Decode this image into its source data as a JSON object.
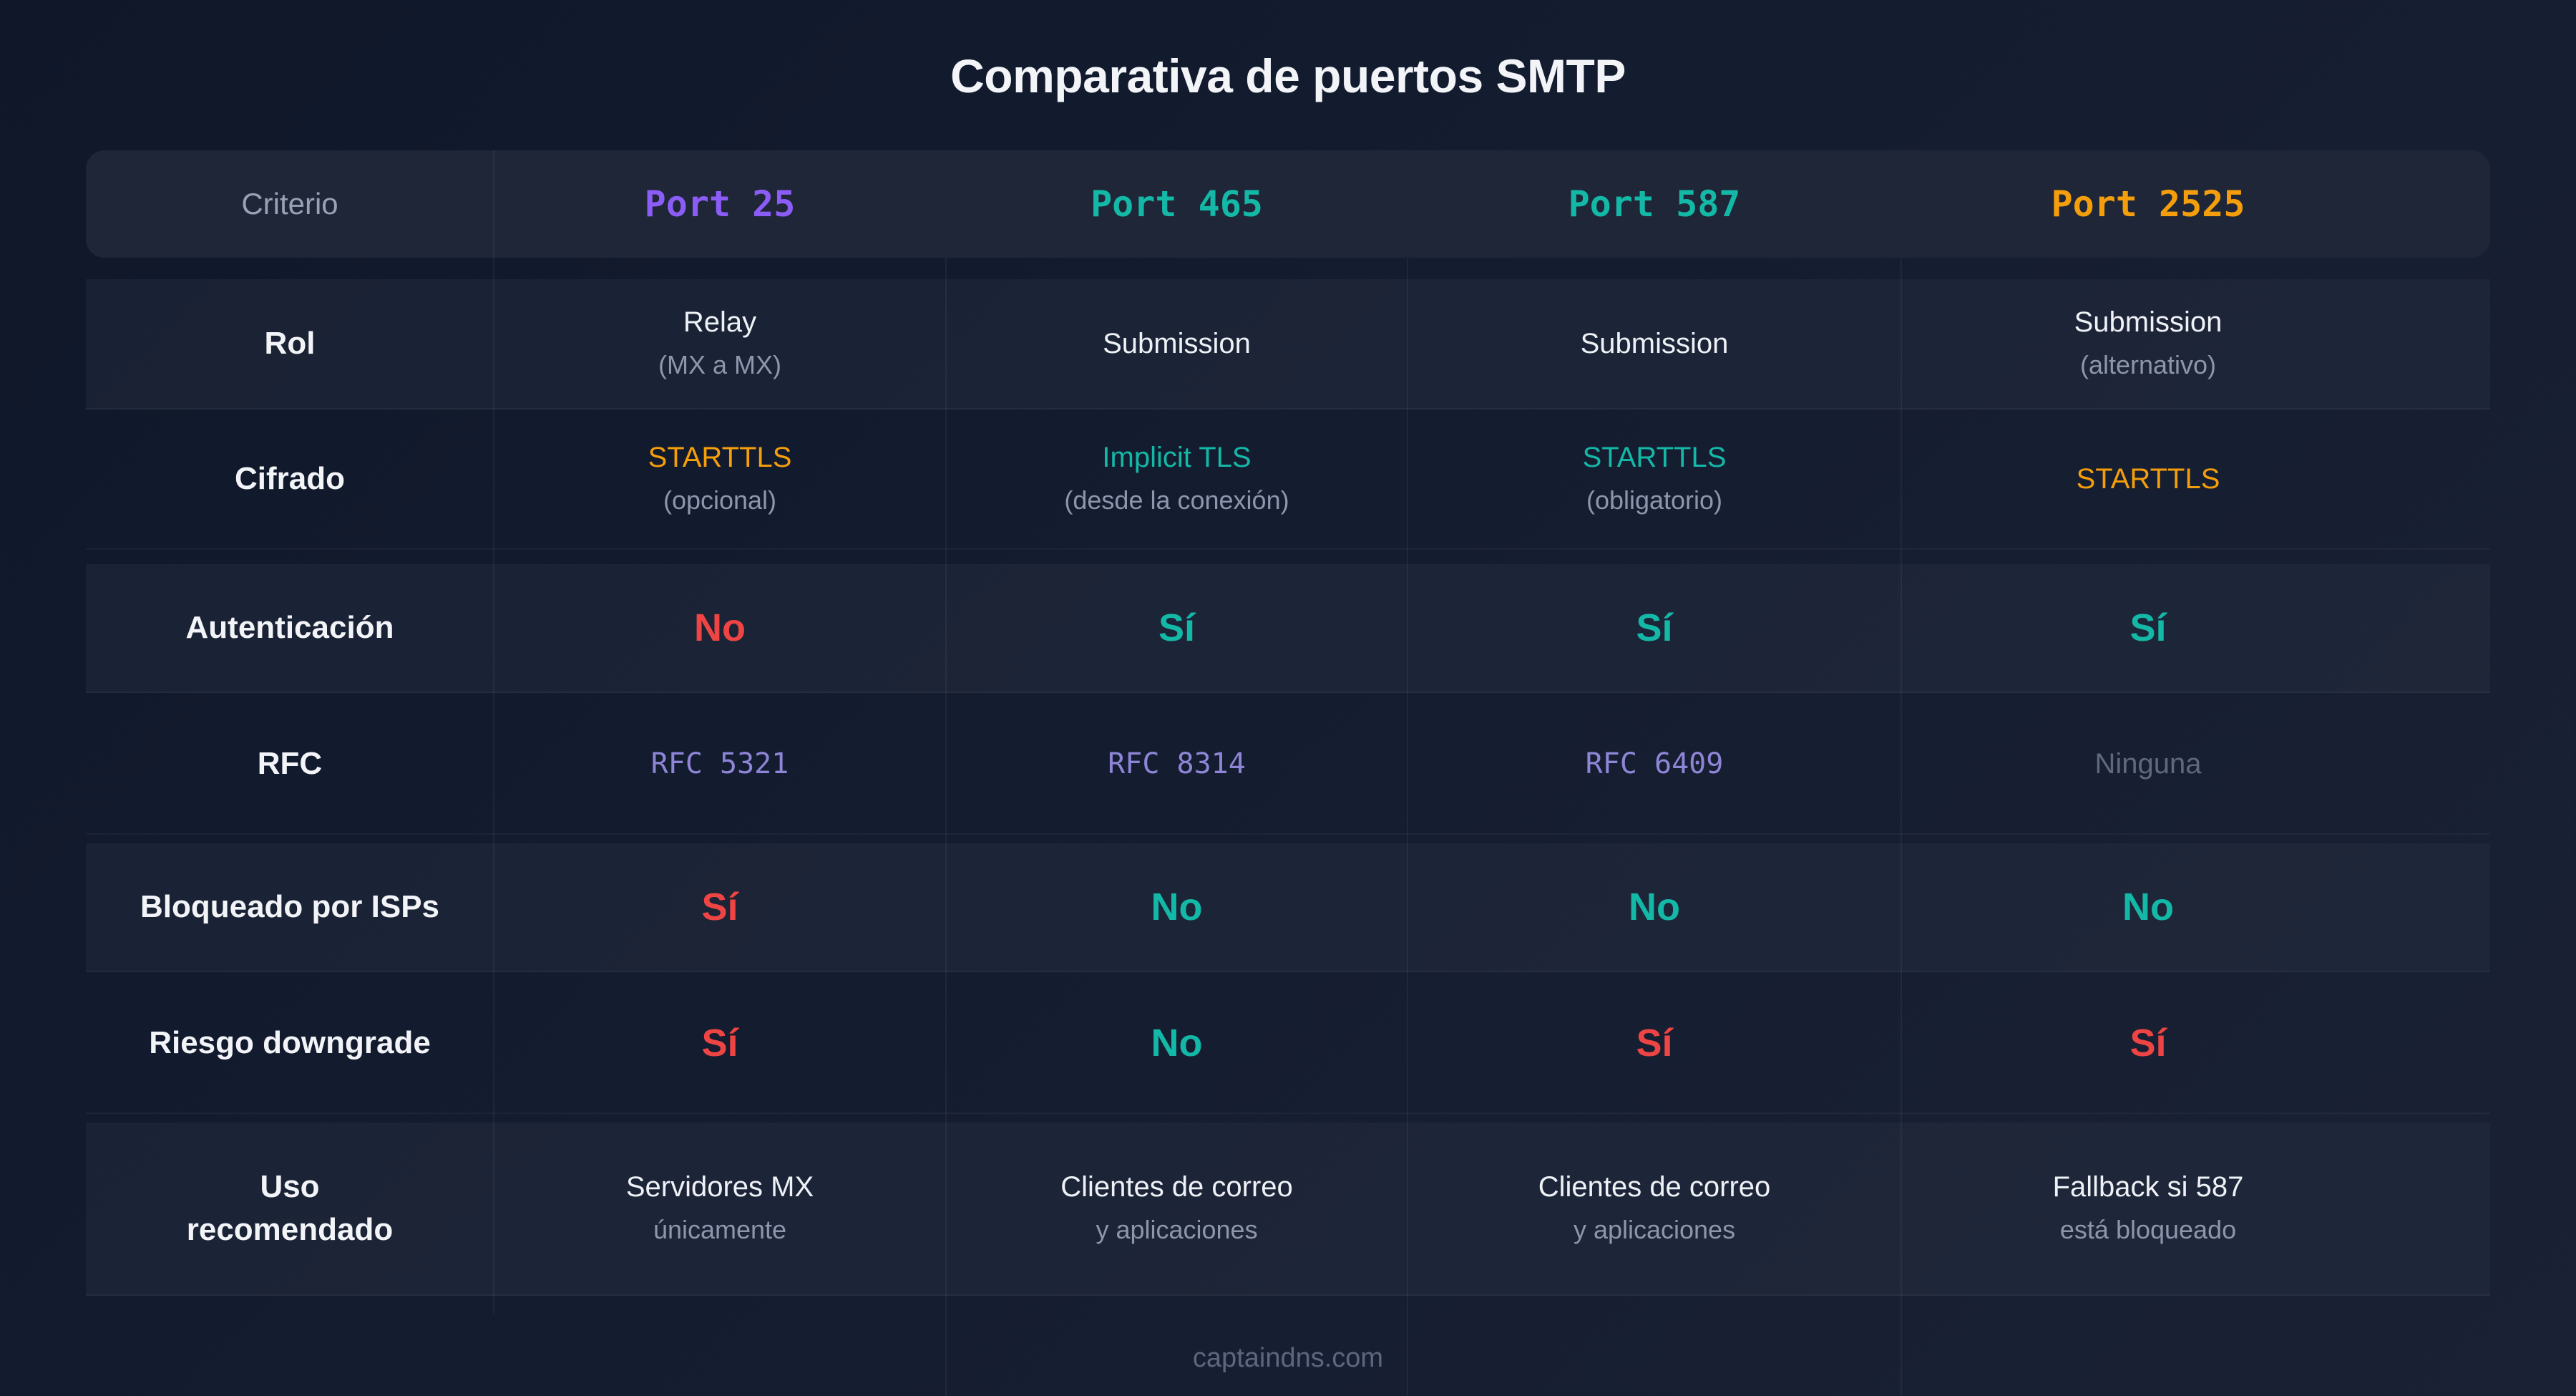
{
  "title": "Comparativa de puertos SMTP",
  "colors": {
    "purple": "#8b5cf6",
    "teal": "#14b8a6",
    "amber": "#f59e0b",
    "red": "#ef4444",
    "rfc": "#8e85d6",
    "muted": "#5f687c"
  },
  "header": {
    "criterio": "Criterio",
    "ports": [
      {
        "label": "Port 25",
        "color": "#8b5cf6"
      },
      {
        "label": "Port 465",
        "color": "#14b8a6"
      },
      {
        "label": "Port 587",
        "color": "#14b8a6"
      },
      {
        "label": "Port 2525",
        "color": "#f59e0b"
      }
    ]
  },
  "rows": {
    "rol": {
      "label": "Rol",
      "cells": [
        {
          "main": "Relay",
          "sub": "(MX a MX)"
        },
        {
          "main": "Submission"
        },
        {
          "main": "Submission"
        },
        {
          "main": "Submission",
          "sub": "(alternativo)"
        }
      ]
    },
    "cifrado": {
      "label": "Cifrado",
      "cells": [
        {
          "main": "STARTTLS",
          "sub": "(opcional)"
        },
        {
          "main": "Implicit TLS",
          "sub": "(desde la conexión)"
        },
        {
          "main": "STARTTLS",
          "sub": "(obligatorio)"
        },
        {
          "main": "STARTTLS"
        }
      ]
    },
    "autenticacion": {
      "label": "Autenticación",
      "cells": [
        "No",
        "Sí",
        "Sí",
        "Sí"
      ]
    },
    "rfc": {
      "label": "RFC",
      "cells": [
        "RFC 5321",
        "RFC 8314",
        "RFC 6409",
        "Ninguna"
      ]
    },
    "bloqueado": {
      "label": "Bloqueado por ISPs",
      "cells": [
        "Sí",
        "No",
        "No",
        "No"
      ]
    },
    "riesgo": {
      "label": "Riesgo downgrade",
      "cells": [
        "Sí",
        "No",
        "Sí",
        "Sí"
      ]
    },
    "uso": {
      "label_line1": "Uso",
      "label_line2": "recomendado",
      "cells": [
        {
          "main": "Servidores MX",
          "sub": "únicamente"
        },
        {
          "main": "Clientes de correo",
          "sub": "y aplicaciones"
        },
        {
          "main": "Clientes de correo",
          "sub": "y aplicaciones"
        },
        {
          "main": "Fallback si 587",
          "sub": "está bloqueado"
        }
      ]
    }
  },
  "footer": "captaindns.com"
}
